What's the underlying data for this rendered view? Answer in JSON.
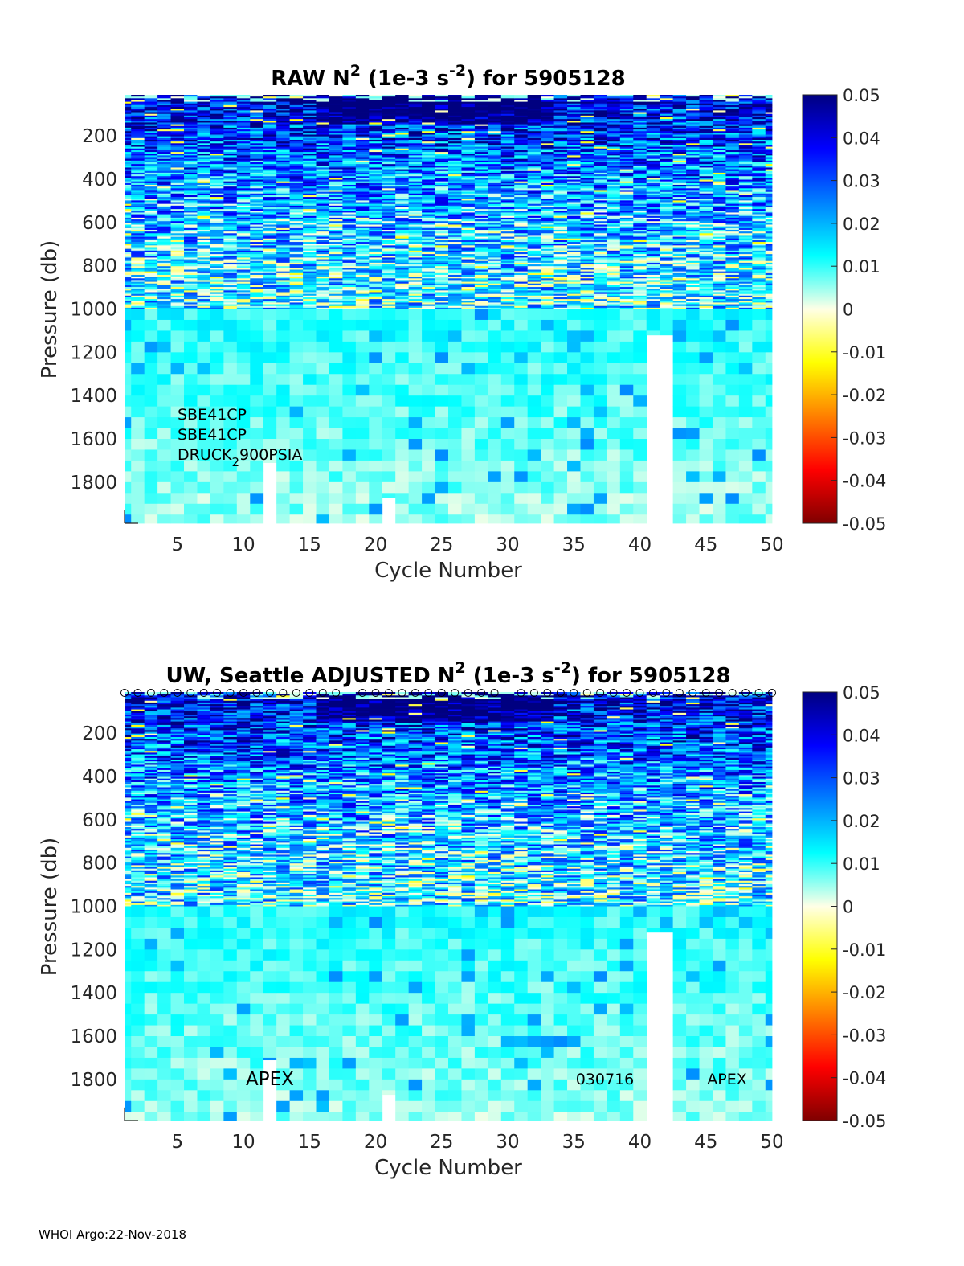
{
  "footer": "WHOI Argo:22-Nov-2018",
  "chart_data": [
    {
      "type": "heatmap",
      "title": "RAW N",
      "title_sup": "2",
      "title_mid": " (1e-3 s",
      "title_sup2": "-2",
      "title_end": ") for 5905128",
      "xlabel": "Cycle Number",
      "ylabel": "Pressure (db)",
      "xlim": [
        1,
        50
      ],
      "ylim": [
        1990,
        10
      ],
      "xticks": [
        "5",
        "10",
        "15",
        "20",
        "25",
        "30",
        "35",
        "40",
        "45",
        "50"
      ],
      "yticks": [
        "200",
        "400",
        "600",
        "800",
        "1000",
        "1200",
        "1400",
        "1600",
        "1800"
      ],
      "colorbar": {
        "min": -0.05,
        "max": 0.05,
        "colormap": "jet",
        "ticks": [
          "0.05",
          "0.04",
          "0.03",
          "0.02",
          "0.01",
          "0",
          "-0.01",
          "-0.02",
          "-0.03",
          "-0.04",
          "-0.05"
        ]
      },
      "sensor_labels": [
        "SBE41CP",
        "SBE41CP",
        "DRUCK"
      ],
      "sensor_sub": "2",
      "sensor_tail": "900PSIA",
      "shallow_pressure_max": 1000,
      "missing_cycles": [
        {
          "cycle": 12,
          "from": 1710
        },
        {
          "cycle": 21,
          "from": 1870
        },
        {
          "cycle": 41,
          "from": 1120
        },
        {
          "cycle": 42,
          "from": 1120
        }
      ],
      "qc_markers": false
    },
    {
      "type": "heatmap",
      "title": "UW, Seattle  ADJUSTED N",
      "title_sup": "2",
      "title_mid": " (1e-3 s",
      "title_sup2": "-2",
      "title_end": ") for 5905128",
      "xlabel": "Cycle Number",
      "ylabel": "Pressure (db)",
      "xlim": [
        1,
        50
      ],
      "ylim": [
        1990,
        10
      ],
      "xticks": [
        "5",
        "10",
        "15",
        "20",
        "25",
        "30",
        "35",
        "40",
        "45",
        "50"
      ],
      "yticks": [
        "200",
        "400",
        "600",
        "800",
        "1000",
        "1200",
        "1400",
        "1600",
        "1800"
      ],
      "colorbar": {
        "min": -0.05,
        "max": 0.05,
        "colormap": "jet",
        "ticks": [
          "0.05",
          "0.04",
          "0.03",
          "0.02",
          "0.01",
          "0",
          "-0.01",
          "-0.02",
          "-0.03",
          "-0.04",
          "-0.05"
        ]
      },
      "annotations": [
        "APEX",
        "030716",
        "APEX"
      ],
      "shallow_pressure_max": 1000,
      "missing_cycles": [
        {
          "cycle": 12,
          "from": 1710
        },
        {
          "cycle": 21,
          "from": 1870
        },
        {
          "cycle": 41,
          "from": 1120
        },
        {
          "cycle": 42,
          "from": 1120
        }
      ],
      "qc_markers": true,
      "qc_marker_cycles": [
        1,
        2,
        3,
        4,
        5,
        6,
        7,
        8,
        9,
        10,
        11,
        12,
        13,
        14,
        15,
        16,
        17,
        19,
        20,
        21,
        22,
        23,
        24,
        25,
        26,
        27,
        28,
        29,
        31,
        32,
        33,
        34,
        35,
        36,
        37,
        38,
        39,
        40,
        41,
        42,
        43,
        44,
        45,
        46,
        47,
        48,
        49,
        50
      ]
    }
  ]
}
